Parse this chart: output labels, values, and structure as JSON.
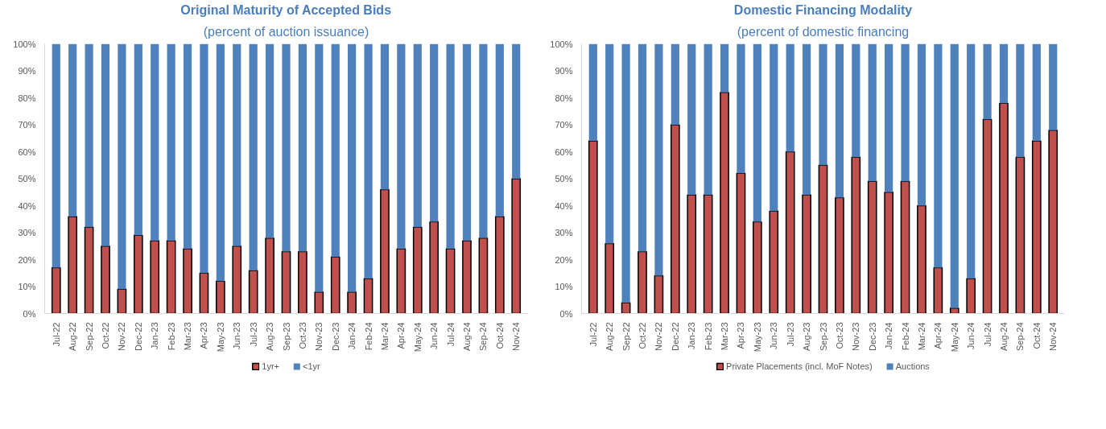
{
  "chart_data": [
    {
      "type": "bar",
      "title": "Original Maturity of Accepted Bids",
      "subtitle": "(percent of auction issuance)",
      "stacked": true,
      "legend": "bottom",
      "grid": false,
      "categories": [
        "Jul-22",
        "Aug-22",
        "Sep-22",
        "Oct-22",
        "Nov-22",
        "Dec-22",
        "Jan-23",
        "Feb-23",
        "Mar-23",
        "Apr-23",
        "May-23",
        "Jun-23",
        "Jul-23",
        "Aug-23",
        "Sep-23",
        "Oct-23",
        "Nov-23",
        "Dec-23",
        "Jan-24",
        "Feb-24",
        "Mar-24",
        "Apr-24",
        "May-24",
        "Jun-24",
        "Jul-24",
        "Aug-24",
        "Sep-24",
        "Oct-24",
        "Nov-24"
      ],
      "series": [
        {
          "name": "1yr+",
          "color": "#c0504d",
          "values": [
            17,
            36,
            32,
            25,
            9,
            29,
            27,
            27,
            24,
            15,
            12,
            25,
            16,
            28,
            23,
            23,
            8,
            21,
            8,
            13,
            46,
            24,
            32,
            34,
            24,
            27,
            28,
            36,
            50
          ]
        },
        {
          "name": "<1yr",
          "color": "#4f81bd",
          "values": [
            83,
            64,
            68,
            75,
            91,
            71,
            73,
            73,
            76,
            85,
            88,
            75,
            84,
            72,
            77,
            77,
            92,
            79,
            92,
            87,
            54,
            76,
            68,
            66,
            76,
            73,
            72,
            64,
            50
          ]
        }
      ],
      "ylim": [
        0,
        100
      ],
      "yticks": [
        {
          "value": 0,
          "label": "0%"
        },
        {
          "value": 10,
          "label": "10%"
        },
        {
          "value": 20,
          "label": "20%"
        },
        {
          "value": 30,
          "label": "30%"
        },
        {
          "value": 40,
          "label": "40%"
        },
        {
          "value": 50,
          "label": "50%"
        },
        {
          "value": 60,
          "label": "60%"
        },
        {
          "value": 70,
          "label": "70%"
        },
        {
          "value": 80,
          "label": "80%"
        },
        {
          "value": 90,
          "label": "90%"
        },
        {
          "value": 100,
          "label": "100%"
        }
      ]
    },
    {
      "type": "bar",
      "title": "Domestic Financing Modality",
      "subtitle": "(percent of domestic financing",
      "stacked": true,
      "legend": "bottom",
      "grid": false,
      "categories": [
        "Jul-22",
        "Aug-22",
        "Sep-22",
        "Oct-22",
        "Nov-22",
        "Dec-22",
        "Jan-23",
        "Feb-23",
        "Mar-23",
        "Apr-23",
        "May-23",
        "Jun-23",
        "Jul-23",
        "Aug-23",
        "Sep-23",
        "Oct-23",
        "Nov-23",
        "Dec-23",
        "Jan-24",
        "Feb-24",
        "Mar-24",
        "Apr-24",
        "May-24",
        "Jun-24",
        "Jul-24",
        "Aug-24",
        "Sep-24",
        "Oct-24",
        "Nov-24"
      ],
      "series": [
        {
          "name": "Private Placements (incl. MoF Notes)",
          "color": "#c0504d",
          "values": [
            64,
            26,
            4,
            23,
            14,
            70,
            44,
            44,
            82,
            52,
            34,
            38,
            60,
            44,
            55,
            43,
            58,
            49,
            45,
            49,
            40,
            17,
            2,
            13,
            72,
            78,
            58,
            64,
            68
          ]
        },
        {
          "name": "Auctions",
          "color": "#4f81bd",
          "values": [
            36,
            74,
            96,
            77,
            86,
            30,
            56,
            56,
            18,
            48,
            66,
            62,
            40,
            56,
            45,
            57,
            42,
            51,
            55,
            51,
            60,
            83,
            98,
            87,
            28,
            22,
            42,
            36,
            32
          ]
        }
      ],
      "ylim": [
        0,
        100
      ],
      "yticks": [
        {
          "value": 0,
          "label": "0%"
        },
        {
          "value": 10,
          "label": "10%"
        },
        {
          "value": 20,
          "label": "20%"
        },
        {
          "value": 30,
          "label": "30%"
        },
        {
          "value": 40,
          "label": "40%"
        },
        {
          "value": 50,
          "label": "50%"
        },
        {
          "value": 60,
          "label": "60%"
        },
        {
          "value": 70,
          "label": "70%"
        },
        {
          "value": 80,
          "label": "80%"
        },
        {
          "value": 90,
          "label": "90%"
        },
        {
          "value": 100,
          "label": "100%"
        }
      ]
    }
  ]
}
